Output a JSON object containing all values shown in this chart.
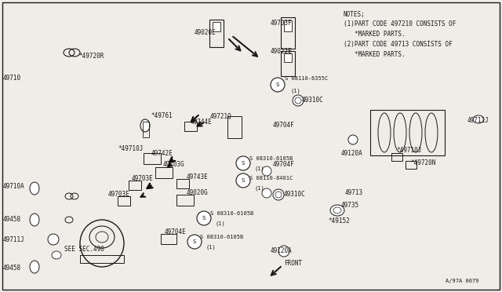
{
  "bg_color": "#f0ede8",
  "line_color": "#1a1a1a",
  "fig_width": 6.4,
  "fig_height": 3.72,
  "notes": [
    "NOTES;",
    "(1)PART CODE 497210 CONSISTS OF",
    "   *MARKED PARTS.",
    "(2)PART CODE 49713 CONSISTS OF",
    "   *MARKED PARTS."
  ],
  "watermark": "A/97A 0079"
}
